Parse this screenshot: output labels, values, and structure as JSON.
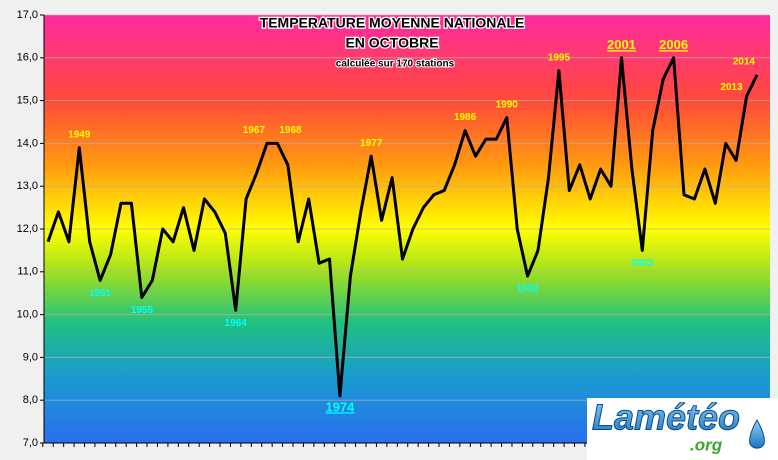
{
  "chart_data": {
    "type": "line",
    "title": [
      "TEMPERATURE MOYENNE NATIONALE",
      "EN OCTOBRE"
    ],
    "subtitle": "calculée sur 170 stations",
    "categories": [
      null,
      null,
      null,
      null,
      null,
      null,
      null,
      null,
      null,
      null,
      null,
      null,
      null,
      null,
      null,
      null,
      null,
      null,
      null,
      null,
      null,
      null,
      null,
      null,
      null,
      null,
      null,
      null,
      null,
      null,
      null,
      null,
      null,
      null,
      null,
      null,
      null,
      null,
      null,
      null,
      null,
      null,
      null,
      null,
      null,
      null,
      null,
      null,
      null,
      null,
      null,
      null,
      null,
      null,
      null,
      null,
      null,
      null,
      null,
      null,
      null,
      null,
      null,
      null,
      null,
      null,
      null,
      null,
      null
    ],
    "values": [
      11.7,
      12.4,
      11.7,
      13.9,
      11.7,
      10.8,
      11.4,
      12.6,
      12.6,
      10.4,
      10.8,
      12.0,
      11.7,
      12.5,
      11.5,
      12.7,
      12.4,
      11.9,
      10.1,
      12.7,
      13.3,
      14.0,
      14.0,
      13.5,
      11.7,
      12.7,
      11.2,
      11.3,
      8.1,
      10.9,
      12.4,
      13.7,
      12.2,
      13.2,
      11.3,
      12.0,
      12.5,
      12.8,
      12.9,
      13.5,
      14.3,
      13.7,
      14.1,
      14.1,
      14.6,
      12.0,
      10.9,
      11.5,
      13.2,
      15.7,
      12.9,
      13.5,
      12.7,
      13.4,
      13.0,
      16.0,
      13.4,
      11.5,
      14.3,
      15.5,
      16.0,
      12.8,
      12.7,
      13.4,
      12.6,
      14.0,
      13.6,
      15.1,
      15.6
    ],
    "color": "#000000",
    "ylim": [
      7,
      17
    ],
    "yticks": [
      {
        "value": 7,
        "label": "7,0"
      },
      {
        "value": 8,
        "label": "8,0"
      },
      {
        "value": 9,
        "label": "9,0"
      },
      {
        "value": 10,
        "label": "10,0"
      },
      {
        "value": 11,
        "label": "11,0"
      },
      {
        "value": 12,
        "label": "12,0"
      },
      {
        "value": 13,
        "label": "13,0"
      },
      {
        "value": 14,
        "label": "14,0"
      },
      {
        "value": 15,
        "label": "15,0"
      },
      {
        "value": 16,
        "label": "16,0"
      },
      {
        "value": 17,
        "label": "17,0"
      }
    ],
    "grid": true,
    "annotations": [
      {
        "text": "1949",
        "index": 3,
        "position": "above",
        "color": "#ffff00"
      },
      {
        "text": "1951",
        "index": 5,
        "position": "below",
        "color": "#00ffff"
      },
      {
        "text": "1955",
        "index": 9,
        "position": "below",
        "color": "#00ffff"
      },
      {
        "text": "1964",
        "index": 18,
        "position": "below",
        "color": "#00ffff"
      },
      {
        "text": "1967",
        "index": 21,
        "position": "above-left",
        "color": "#ffff00"
      },
      {
        "text": "1968",
        "index": 22,
        "position": "above-right",
        "color": "#ffff00"
      },
      {
        "text": "1974",
        "index": 28,
        "position": "below",
        "color": "#00ffff",
        "underline": true
      },
      {
        "text": "1977",
        "index": 31,
        "position": "above",
        "color": "#ffff00"
      },
      {
        "text": "1986",
        "index": 40,
        "position": "above",
        "color": "#ffff00"
      },
      {
        "text": "1990",
        "index": 44,
        "position": "above",
        "color": "#ffff00"
      },
      {
        "text": "1992",
        "index": 46,
        "position": "below",
        "color": "#00ffff"
      },
      {
        "text": "1995",
        "index": 49,
        "position": "above",
        "color": "#ffff00"
      },
      {
        "text": "2001",
        "index": 55,
        "position": "above",
        "color": "#ffff00",
        "underline": true
      },
      {
        "text": "2003",
        "index": 57,
        "position": "below",
        "color": "#00ffff"
      },
      {
        "text": "2006",
        "index": 60,
        "position": "above",
        "color": "#ffff00",
        "underline": true
      },
      {
        "text": "2013",
        "index": 67,
        "position": "left",
        "color": "#ffff00"
      },
      {
        "text": "2014",
        "index": 68,
        "position": "above-left",
        "color": "#ffff00"
      }
    ]
  },
  "logo": {
    "name": "Lamétéo",
    "domain": ".org"
  }
}
